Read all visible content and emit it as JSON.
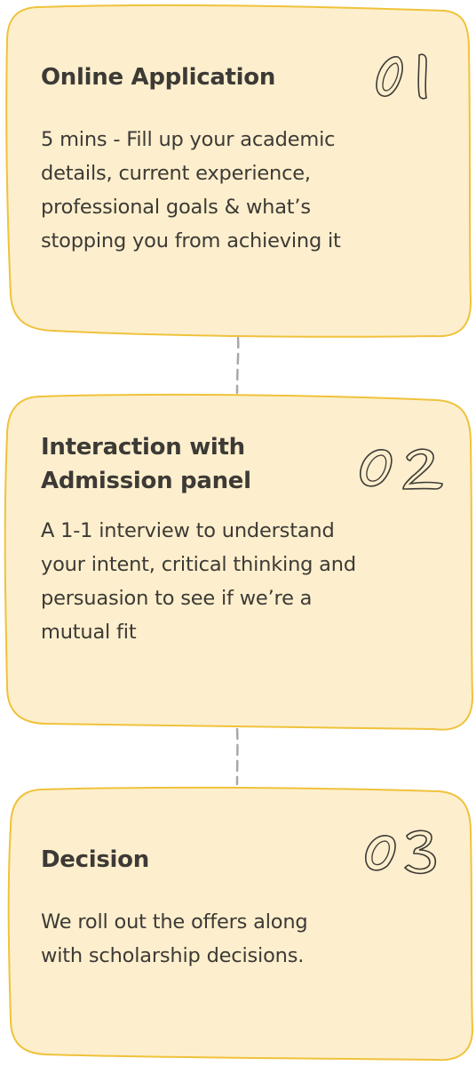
{
  "colors": {
    "card_fill": "#fdefcd",
    "card_stroke": "#f0c23b",
    "text": "#3d3a36",
    "connector": "#a8a8a8"
  },
  "steps": [
    {
      "number": "01",
      "title": "Online Application",
      "description": "5 mins - Fill up your academic details, current experience, professional goals & what’s stopping you from achieving it"
    },
    {
      "number": "02",
      "title": "Interaction with Admission panel",
      "description": "A 1-1 interview to understand your intent, critical thinking and persuasion to see if we’re a mutual fit"
    },
    {
      "number": "03",
      "title": "Decision",
      "description": "We roll out the offers along with scholarship decisions."
    }
  ]
}
